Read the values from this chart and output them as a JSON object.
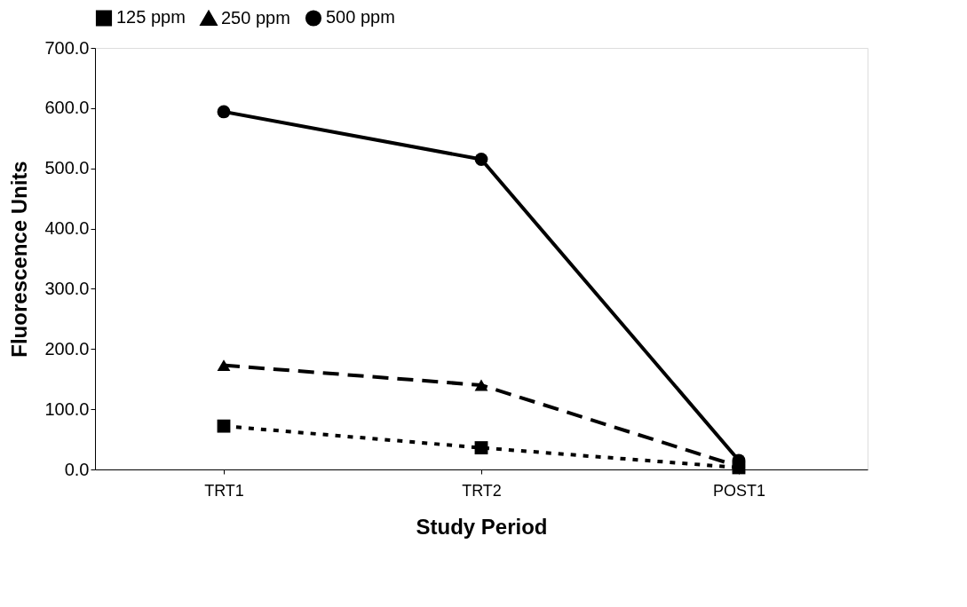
{
  "chart_data": {
    "type": "line",
    "xlabel": "Study Period",
    "ylabel": "Fluorescence Units",
    "categories": [
      "TRT1",
      "TRT2",
      "POST1"
    ],
    "series": [
      {
        "name": "125 ppm",
        "color": "#000000",
        "marker": "square",
        "line_style": "dotted",
        "values": [
          72,
          36,
          3
        ]
      },
      {
        "name": "250 ppm",
        "color": "#000000",
        "marker": "triangle",
        "line_style": "dashed",
        "values": [
          173,
          140,
          5
        ]
      },
      {
        "name": "500 ppm",
        "color": "#000000",
        "marker": "circle",
        "line_style": "solid",
        "values": [
          594,
          515,
          15
        ]
      }
    ],
    "ylim": [
      0,
      700
    ],
    "yticks": [
      {
        "value": 0,
        "label": "0.0"
      },
      {
        "value": 100,
        "label": "100.0"
      },
      {
        "value": 200,
        "label": "200.0"
      },
      {
        "value": 300,
        "label": "300.0"
      },
      {
        "value": 400,
        "label": "400.0"
      },
      {
        "value": 500,
        "label": "500.0"
      },
      {
        "value": 600,
        "label": "600.0"
      },
      {
        "value": 700,
        "label": "700.0"
      }
    ],
    "grid": false,
    "legend": "top"
  }
}
